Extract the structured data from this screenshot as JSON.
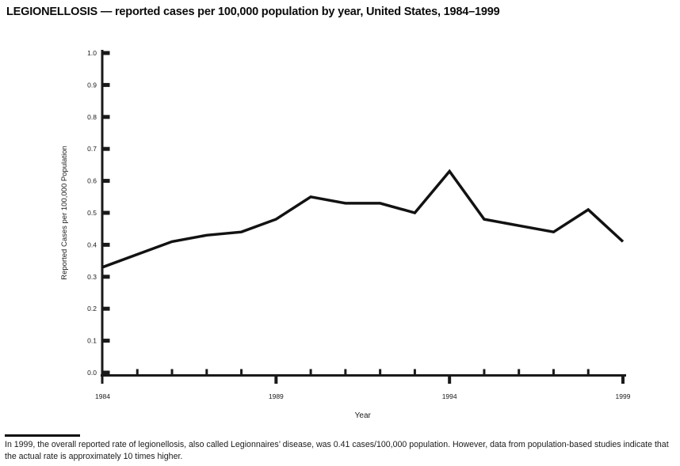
{
  "title": "LEGIONELLOSIS — reported cases per 100,000 population by year, United States, 1984–1999",
  "chart_data": {
    "type": "line",
    "x": [
      1984,
      1985,
      1986,
      1987,
      1988,
      1989,
      1990,
      1991,
      1992,
      1993,
      1994,
      1995,
      1996,
      1997,
      1998,
      1999
    ],
    "values": [
      0.33,
      0.37,
      0.41,
      0.43,
      0.44,
      0.48,
      0.55,
      0.53,
      0.53,
      0.5,
      0.63,
      0.48,
      0.46,
      0.44,
      0.51,
      0.41
    ],
    "title": "LEGIONELLOSIS — reported cases per 100,000 population by year, United States, 1984–1999",
    "xlabel": "Year",
    "ylabel": "Reported Cases per 100,000 Population",
    "ylim": [
      0.0,
      1.0
    ],
    "ytick_labels": [
      "0.0",
      "0.1",
      "0.2",
      "0.3",
      "0.4",
      "0.5",
      "0.6",
      "0.7",
      "0.8",
      "0.9",
      "1.0"
    ],
    "xtick_labeled_years": [
      "1984",
      "1989",
      "1994",
      "1999"
    ],
    "grid": "off",
    "legend": "none",
    "line_color": "#121212",
    "axis_color": "#1a1a1a"
  },
  "footnote": "In 1999, the overall reported rate of legionellosis, also called Legionnaires’ disease, was 0.41 cases/100,000 population. However, data from population-based studies indicate that the actual rate is approximately 10 times higher."
}
